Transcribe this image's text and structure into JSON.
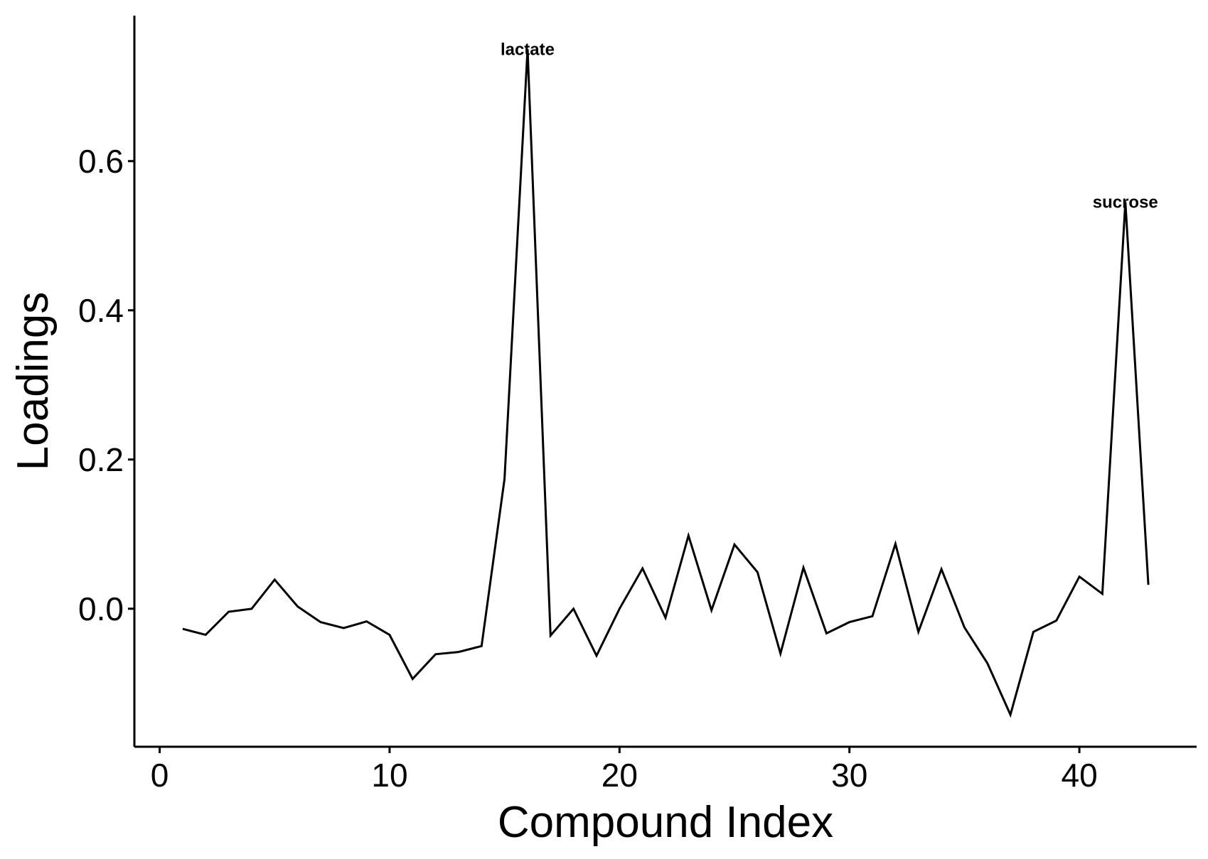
{
  "chart_data": {
    "type": "line",
    "xlabel": "Compound Index",
    "ylabel": "Loadings",
    "xlim": [
      -1.1,
      45.1
    ],
    "ylim": [
      -0.185,
      0.795
    ],
    "xticks": [
      0,
      10,
      20,
      30,
      40
    ],
    "xtick_labels": [
      "0",
      "10",
      "20",
      "30",
      "40"
    ],
    "yticks": [
      0.0,
      0.2,
      0.4,
      0.6
    ],
    "ytick_labels": [
      "0.0",
      "0.2",
      "0.4",
      "0.6"
    ],
    "grid": false,
    "legend": "none",
    "line_color": "#000000",
    "series": [
      {
        "x": [
          1,
          2,
          3,
          4,
          5,
          6,
          7,
          8,
          9,
          10,
          11,
          12,
          13,
          14,
          15,
          16,
          17,
          18,
          19,
          20,
          21,
          22,
          23,
          24,
          25,
          26,
          27,
          28,
          29,
          30,
          31,
          32,
          33,
          34,
          35,
          36,
          37,
          38,
          39,
          40,
          41,
          42,
          43
        ],
        "values": [
          -0.027,
          -0.035,
          -0.004,
          0.0,
          0.039,
          0.003,
          -0.018,
          -0.026,
          -0.017,
          -0.035,
          -0.094,
          -0.061,
          -0.058,
          -0.05,
          0.174,
          0.75,
          -0.036,
          0.0,
          -0.063,
          0.0,
          0.054,
          -0.012,
          0.098,
          -0.002,
          0.086,
          0.049,
          -0.06,
          0.055,
          -0.033,
          -0.018,
          -0.01,
          0.087,
          -0.031,
          0.053,
          -0.025,
          -0.073,
          -0.142,
          -0.031,
          -0.016,
          0.043,
          0.02,
          0.545,
          0.032
        ]
      }
    ],
    "annotations": [
      {
        "text": "lactate",
        "x": 16,
        "y": 0.75
      },
      {
        "text": "sucrose",
        "x": 42,
        "y": 0.545
      }
    ]
  }
}
